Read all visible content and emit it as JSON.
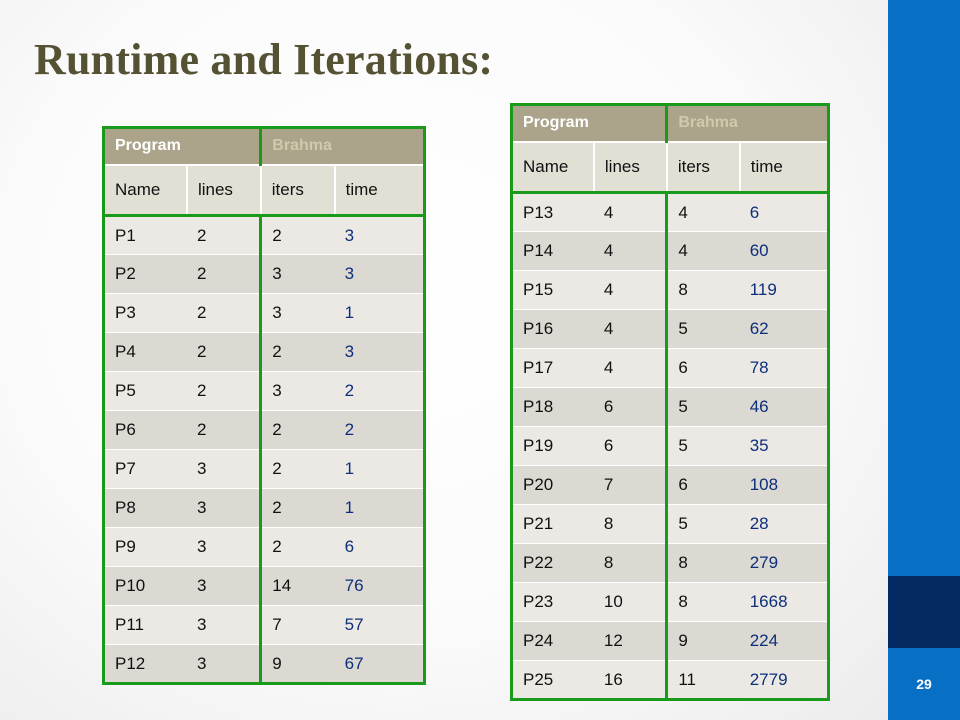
{
  "title": "Runtime and Iterations:",
  "page_number": "29",
  "colors": {
    "title": "#545232",
    "table_border": "#1a9a1a",
    "header_fill": "#aba48a",
    "time_text": "#0c2f7a",
    "sidebar": "#0870c4",
    "sidebar_dark": "#032a63"
  },
  "tables": [
    {
      "header1": [
        "Program",
        "Brahma"
      ],
      "header2": [
        "Name",
        "lines",
        "iters",
        "time"
      ],
      "rows": [
        [
          "P1",
          "2",
          "2",
          "3"
        ],
        [
          "P2",
          "2",
          "3",
          "3"
        ],
        [
          "P3",
          "2",
          "3",
          "1"
        ],
        [
          "P4",
          "2",
          "2",
          "3"
        ],
        [
          "P5",
          "2",
          "3",
          "2"
        ],
        [
          "P6",
          "2",
          "2",
          "2"
        ],
        [
          "P7",
          "3",
          "2",
          "1"
        ],
        [
          "P8",
          "3",
          "2",
          "1"
        ],
        [
          "P9",
          "3",
          "2",
          "6"
        ],
        [
          "P10",
          "3",
          "14",
          "76"
        ],
        [
          "P11",
          "3",
          "7",
          "57"
        ],
        [
          "P12",
          "3",
          "9",
          "67"
        ]
      ]
    },
    {
      "header1": [
        "Program",
        "Brahma"
      ],
      "header2": [
        "Name",
        "lines",
        "iters",
        "time"
      ],
      "rows": [
        [
          "P13",
          "4",
          "4",
          "6"
        ],
        [
          "P14",
          "4",
          "4",
          "60"
        ],
        [
          "P15",
          "4",
          "8",
          "119"
        ],
        [
          "P16",
          "4",
          "5",
          "62"
        ],
        [
          "P17",
          "4",
          "6",
          "78"
        ],
        [
          "P18",
          "6",
          "5",
          "46"
        ],
        [
          "P19",
          "6",
          "5",
          "35"
        ],
        [
          "P20",
          "7",
          "6",
          "108"
        ],
        [
          "P21",
          "8",
          "5",
          "28"
        ],
        [
          "P22",
          "8",
          "8",
          "279"
        ],
        [
          "P23",
          "10",
          "8",
          "1668"
        ],
        [
          "P24",
          "12",
          "9",
          "224"
        ],
        [
          "P25",
          "16",
          "11",
          "2779"
        ]
      ]
    }
  ]
}
